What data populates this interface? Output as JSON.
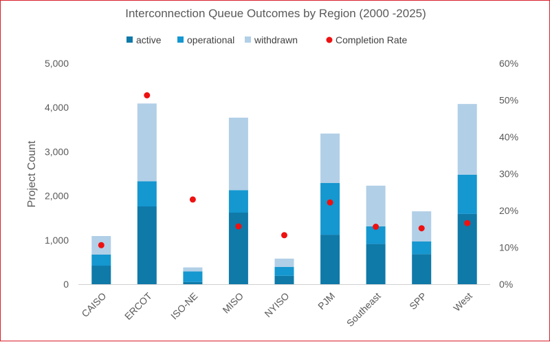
{
  "chart_data": {
    "type": "bar",
    "stacked": true,
    "title": "Interconnection Queue Outcomes by Region (2000 -2025)",
    "ylabel": "Project Count",
    "y2label": "",
    "categories": [
      "CAISO",
      "ERCOT",
      "ISO-NE",
      "MISO",
      "NYISO",
      "PJM",
      "Southeast",
      "SPP",
      "West"
    ],
    "series": [
      {
        "name": "active",
        "kind": "bar",
        "axis": "left",
        "color": "#0f79a8",
        "values": [
          420,
          1760,
          50,
          1620,
          190,
          1120,
          910,
          680,
          1590
        ]
      },
      {
        "name": "operational",
        "kind": "bar",
        "axis": "left",
        "color": "#1597d0",
        "values": [
          250,
          570,
          240,
          510,
          200,
          1170,
          400,
          290,
          890
        ]
      },
      {
        "name": "withdrawn",
        "kind": "bar",
        "axis": "left",
        "color": "#b1cfe7",
        "values": [
          420,
          1760,
          90,
          1640,
          190,
          1120,
          920,
          680,
          1600
        ]
      },
      {
        "name": "Completion Rate",
        "kind": "scatter",
        "axis": "right",
        "color": "#ee1111",
        "values": [
          0.106,
          0.513,
          0.23,
          0.157,
          0.133,
          0.222,
          0.156,
          0.152,
          0.166
        ]
      }
    ],
    "ylim": [
      0,
      5000
    ],
    "y2lim": [
      0,
      0.6
    ],
    "yticks": [
      "0",
      "1,000",
      "2,000",
      "3,000",
      "4,000",
      "5,000"
    ],
    "y2ticks": [
      "0%",
      "10%",
      "20%",
      "30%",
      "40%",
      "50%",
      "60%"
    ],
    "grid": false,
    "legend_position": "top"
  }
}
